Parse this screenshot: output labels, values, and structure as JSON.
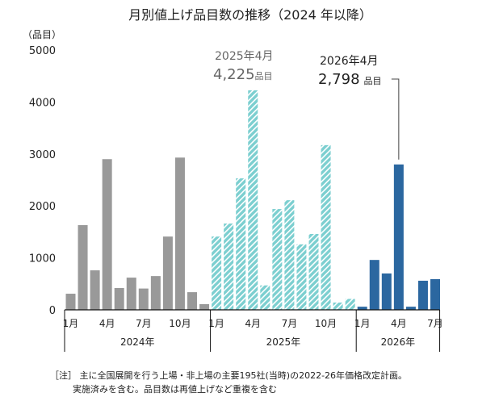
{
  "chart_data": {
    "type": "bar",
    "title": "月別値上げ品目数の推移（2024 年以降）",
    "ylabel": "（品目）",
    "ylim": [
      0,
      5000
    ],
    "yticks": [
      0,
      1000,
      2000,
      3000,
      4000,
      5000
    ],
    "grid": false,
    "month_labels": [
      "1月",
      "4月",
      "7月",
      "10月"
    ],
    "series": [
      {
        "year_label": "2024年",
        "color": "#999999",
        "pattern": "solid",
        "values": [
          310,
          1630,
          760,
          2900,
          420,
          620,
          410,
          650,
          1410,
          2930,
          340,
          110
        ]
      },
      {
        "year_label": "2025年",
        "color": "#7ccfd0",
        "pattern": "hatched",
        "values": [
          1410,
          1660,
          2530,
          4225,
          470,
          1940,
          2110,
          1260,
          1460,
          3170,
          140,
          210
        ]
      },
      {
        "year_label": "2026年",
        "color": "#2b67a0",
        "pattern": "solid",
        "values": [
          60,
          960,
          700,
          2798,
          60,
          560,
          590
        ]
      }
    ],
    "annotations": [
      {
        "label": "2025年4月",
        "value": "4,225",
        "unit": "品目"
      },
      {
        "label": "2026年4月",
        "value": "2,798",
        "unit": "品目"
      }
    ]
  },
  "notes": {
    "line1": "［注］ 主に全国展開を行う上場・非上場の主要195社(当時)の2022-26年価格改定計画。",
    "line2": "実施済みを含む。品目数は再値上げなど重複を含む"
  }
}
